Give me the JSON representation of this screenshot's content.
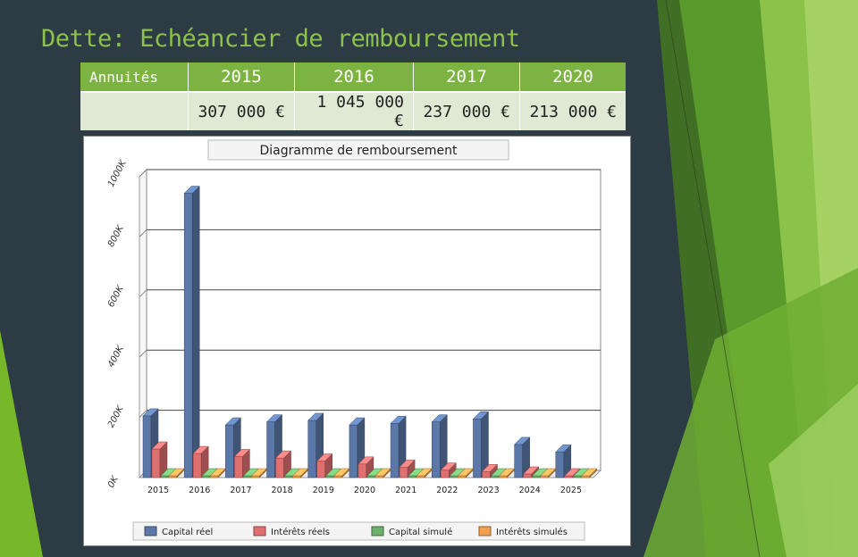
{
  "slide": {
    "title": "Dette: Echéancier de remboursement"
  },
  "annuites_table": {
    "label": "Annuités",
    "years": [
      "2015",
      "2016",
      "2017",
      "2020"
    ],
    "amounts": [
      "307 000 €",
      "1 045 000 €",
      "237 000 €",
      "213 000 €"
    ]
  },
  "colors": {
    "accent_green": "#8bc34a",
    "table_header": "#7cb342",
    "table_body": "#dfe9d3",
    "capital_reel": "#5b78a8",
    "interets_reels": "#e06f6f",
    "capital_simule": "#6cb06c",
    "interets_simules": "#f0a050"
  },
  "chart_data": {
    "type": "bar",
    "title": "Diagramme de remboursement",
    "categories": [
      "2015",
      "2016",
      "2017",
      "2018",
      "2019",
      "2020",
      "2021",
      "2022",
      "2023",
      "2024",
      "2025"
    ],
    "series": [
      {
        "name": "Capital réel",
        "values": [
          205,
          945,
          175,
          185,
          190,
          175,
          180,
          185,
          195,
          110,
          85
        ]
      },
      {
        "name": "Intérêts réels",
        "values": [
          95,
          80,
          70,
          65,
          55,
          45,
          35,
          25,
          20,
          12,
          6
        ]
      },
      {
        "name": "Capital simulé",
        "values": [
          0,
          0,
          0,
          0,
          0,
          0,
          0,
          0,
          0,
          0,
          0
        ]
      },
      {
        "name": "Intérêts simulés",
        "values": [
          0,
          0,
          0,
          0,
          0,
          0,
          0,
          0,
          0,
          0,
          0
        ]
      }
    ],
    "y_ticks": [
      "0K",
      "200K",
      "400K",
      "600K",
      "800K",
      "1000K"
    ],
    "ylim": [
      0,
      1000
    ],
    "grid": true,
    "legend": "bottom"
  }
}
